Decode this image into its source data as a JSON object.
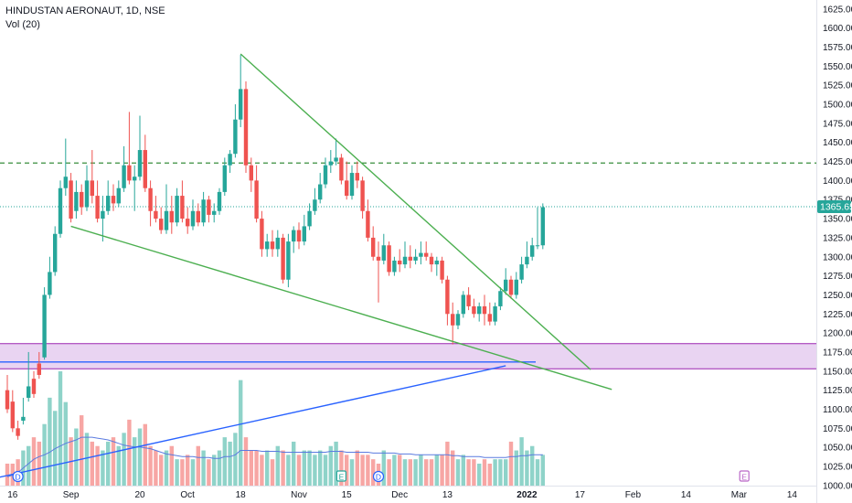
{
  "header": {
    "symbol_line": "HINDUSTAN AERONAUT, 1D, NSE",
    "indicator_line": "Vol (20)"
  },
  "price_tag": "1365.65",
  "colors": {
    "up": "#26a69a",
    "down": "#ef5350",
    "vol_up": "#8fd3c9",
    "vol_down": "#f7a6a4",
    "trendline_green": "#4caf50",
    "trendline_blue": "#2962ff",
    "zone_fill": "#e9d4f2",
    "zone_border": "#9c27b0",
    "resistance": "#388e3c",
    "vol_ma": "#5b7be0",
    "last_price": "#26a69a"
  },
  "chart_data": {
    "type": "candlestick",
    "price_axis": {
      "ticks": [
        "1625.00",
        "1600.00",
        "1575.00",
        "1550.00",
        "1525.00",
        "1500.00",
        "1475.00",
        "1450.00",
        "1425.00",
        "1400.00",
        "1375.00",
        "1350.00",
        "1325.00",
        "1300.00",
        "1275.00",
        "1250.00",
        "1225.00",
        "1200.00",
        "1175.00",
        "1150.00",
        "1125.00",
        "1100.00",
        "1075.00",
        "1050.00",
        "1025.00",
        "1000.00"
      ],
      "range": [
        995,
        1632
      ]
    },
    "time_axis": {
      "labels": [
        {
          "text": "16",
          "bar": 1
        },
        {
          "text": "Sep",
          "bar": 12
        },
        {
          "text": "20",
          "bar": 25
        },
        {
          "text": "Oct",
          "bar": 34
        },
        {
          "text": "18",
          "bar": 44
        },
        {
          "text": "Nov",
          "bar": 55
        },
        {
          "text": "15",
          "bar": 64
        },
        {
          "text": "Dec",
          "bar": 74
        },
        {
          "text": "13",
          "bar": 83
        },
        {
          "text": "2022",
          "bar": 98
        },
        {
          "text": "17",
          "bar": 108
        },
        {
          "text": "Feb",
          "bar": 118
        },
        {
          "text": "14",
          "bar": 128
        },
        {
          "text": "Mar",
          "bar": 138
        },
        {
          "text": "14",
          "bar": 148
        }
      ]
    },
    "candles": [
      [
        1125,
        1145,
        1100,
        1095
      ],
      [
        1110,
        1125,
        1075,
        1070
      ],
      [
        1075,
        1085,
        1065,
        1060
      ],
      [
        1085,
        1115,
        1090,
        1080
      ],
      [
        1115,
        1175,
        1130,
        1110
      ],
      [
        1140,
        1150,
        1120,
        1115
      ],
      [
        1160,
        1175,
        1145,
        1140
      ],
      [
        1168,
        1260,
        1250,
        1165
      ],
      [
        1250,
        1300,
        1280,
        1245
      ],
      [
        1280,
        1340,
        1330,
        1275
      ],
      [
        1330,
        1400,
        1390,
        1325
      ],
      [
        1390,
        1455,
        1405,
        1380
      ],
      [
        1400,
        1410,
        1350,
        1345
      ],
      [
        1360,
        1400,
        1385,
        1350
      ],
      [
        1385,
        1395,
        1365,
        1355
      ],
      [
        1365,
        1420,
        1400,
        1360
      ],
      [
        1400,
        1440,
        1380,
        1370
      ],
      [
        1380,
        1400,
        1350,
        1345
      ],
      [
        1350,
        1380,
        1360,
        1320
      ],
      [
        1360,
        1400,
        1380,
        1355
      ],
      [
        1380,
        1395,
        1370,
        1360
      ],
      [
        1370,
        1400,
        1390,
        1365
      ],
      [
        1390,
        1445,
        1420,
        1385
      ],
      [
        1420,
        1490,
        1400,
        1395
      ],
      [
        1400,
        1420,
        1405,
        1360
      ],
      [
        1405,
        1485,
        1440,
        1400
      ],
      [
        1440,
        1460,
        1390,
        1385
      ],
      [
        1390,
        1400,
        1360,
        1340
      ],
      [
        1360,
        1380,
        1350,
        1345
      ],
      [
        1350,
        1365,
        1335,
        1330
      ],
      [
        1335,
        1395,
        1360,
        1330
      ],
      [
        1360,
        1380,
        1345,
        1330
      ],
      [
        1345,
        1390,
        1380,
        1340
      ],
      [
        1380,
        1400,
        1350,
        1345
      ],
      [
        1350,
        1365,
        1340,
        1330
      ],
      [
        1340,
        1375,
        1360,
        1335
      ],
      [
        1360,
        1370,
        1345,
        1340
      ],
      [
        1345,
        1385,
        1375,
        1340
      ],
      [
        1375,
        1380,
        1355,
        1345
      ],
      [
        1355,
        1370,
        1360,
        1345
      ],
      [
        1360,
        1390,
        1385,
        1355
      ],
      [
        1385,
        1430,
        1420,
        1380
      ],
      [
        1420,
        1440,
        1435,
        1410
      ],
      [
        1435,
        1500,
        1480,
        1430
      ],
      [
        1480,
        1565,
        1520,
        1470
      ],
      [
        1520,
        1530,
        1420,
        1410
      ],
      [
        1420,
        1430,
        1400,
        1385
      ],
      [
        1400,
        1420,
        1350,
        1345
      ],
      [
        1350,
        1360,
        1310,
        1300
      ],
      [
        1310,
        1330,
        1320,
        1300
      ],
      [
        1320,
        1335,
        1310,
        1300
      ],
      [
        1310,
        1335,
        1325,
        1300
      ],
      [
        1325,
        1330,
        1270,
        1265
      ],
      [
        1270,
        1330,
        1320,
        1260
      ],
      [
        1320,
        1340,
        1335,
        1305
      ],
      [
        1335,
        1345,
        1320,
        1310
      ],
      [
        1320,
        1355,
        1340,
        1315
      ],
      [
        1340,
        1370,
        1360,
        1335
      ],
      [
        1360,
        1390,
        1375,
        1355
      ],
      [
        1375,
        1410,
        1395,
        1370
      ],
      [
        1395,
        1430,
        1420,
        1390
      ],
      [
        1420,
        1440,
        1425,
        1410
      ],
      [
        1425,
        1455,
        1430,
        1420
      ],
      [
        1430,
        1435,
        1400,
        1395
      ],
      [
        1400,
        1425,
        1380,
        1375
      ],
      [
        1380,
        1420,
        1410,
        1375
      ],
      [
        1410,
        1425,
        1400,
        1390
      ],
      [
        1400,
        1405,
        1360,
        1350
      ],
      [
        1360,
        1375,
        1325,
        1320
      ],
      [
        1325,
        1340,
        1300,
        1295
      ],
      [
        1300,
        1320,
        1295,
        1240
      ],
      [
        1295,
        1330,
        1315,
        1290
      ],
      [
        1315,
        1320,
        1280,
        1275
      ],
      [
        1280,
        1300,
        1295,
        1275
      ],
      [
        1295,
        1310,
        1290,
        1280
      ],
      [
        1290,
        1320,
        1300,
        1285
      ],
      [
        1300,
        1315,
        1295,
        1285
      ],
      [
        1295,
        1310,
        1300,
        1290
      ],
      [
        1300,
        1320,
        1305,
        1290
      ],
      [
        1305,
        1320,
        1300,
        1295
      ],
      [
        1300,
        1305,
        1290,
        1280
      ],
      [
        1290,
        1300,
        1295,
        1275
      ],
      [
        1295,
        1300,
        1270,
        1265
      ],
      [
        1270,
        1275,
        1225,
        1210
      ],
      [
        1225,
        1240,
        1210,
        1185
      ],
      [
        1210,
        1230,
        1225,
        1205
      ],
      [
        1225,
        1255,
        1250,
        1220
      ],
      [
        1250,
        1260,
        1235,
        1230
      ],
      [
        1235,
        1245,
        1225,
        1220
      ],
      [
        1225,
        1240,
        1235,
        1215
      ],
      [
        1235,
        1250,
        1225,
        1210
      ],
      [
        1225,
        1240,
        1215,
        1210
      ],
      [
        1215,
        1240,
        1235,
        1210
      ],
      [
        1235,
        1260,
        1255,
        1230
      ],
      [
        1255,
        1285,
        1270,
        1250
      ],
      [
        1270,
        1275,
        1250,
        1245
      ],
      [
        1250,
        1280,
        1270,
        1245
      ],
      [
        1270,
        1300,
        1290,
        1265
      ],
      [
        1290,
        1320,
        1300,
        1285
      ],
      [
        1300,
        1325,
        1315,
        1295
      ],
      [
        1315,
        1365,
        1315,
        1310
      ],
      [
        1315,
        1370,
        1365,
        1310
      ]
    ],
    "volume": {
      "axis_range": [
        0,
        130
      ],
      "values": [
        25,
        25,
        30,
        40,
        45,
        55,
        50,
        70,
        100,
        85,
        130,
        95,
        55,
        65,
        80,
        60,
        50,
        45,
        40,
        50,
        55,
        45,
        60,
        75,
        55,
        65,
        70,
        45,
        40,
        35,
        40,
        45,
        30,
        30,
        35,
        30,
        45,
        40,
        30,
        35,
        40,
        55,
        50,
        60,
        120,
        55,
        40,
        40,
        35,
        40,
        30,
        45,
        40,
        35,
        50,
        35,
        40,
        40,
        35,
        40,
        35,
        45,
        50,
        40,
        35,
        30,
        40,
        35,
        35,
        30,
        25,
        40,
        30,
        35,
        35,
        30,
        30,
        30,
        35,
        30,
        30,
        35,
        35,
        50,
        40,
        30,
        35,
        30,
        30,
        25,
        30,
        25,
        30,
        30,
        30,
        50,
        40,
        55,
        40,
        45,
        30,
        35
      ],
      "ma_values": [
        10,
        12,
        15,
        20,
        25,
        30,
        33,
        35,
        38,
        42,
        45,
        48,
        50,
        52,
        55,
        55,
        55,
        54,
        53,
        52,
        50,
        48,
        46,
        45,
        44,
        44,
        43,
        42,
        40,
        38,
        36,
        35,
        34,
        33,
        33,
        33,
        32,
        32,
        32,
        31,
        31,
        33,
        33,
        35,
        40,
        40,
        40,
        40,
        39,
        39,
        39,
        39,
        38,
        38,
        38,
        38,
        38,
        38,
        38,
        38,
        38,
        39,
        39,
        39,
        38,
        38,
        38,
        38,
        38,
        37,
        37,
        37,
        37,
        37,
        36,
        36,
        36,
        35,
        35,
        35,
        35,
        35,
        35,
        35,
        34,
        34,
        33,
        33,
        33,
        33,
        32,
        32,
        32,
        32,
        32,
        33,
        33,
        34,
        34,
        35,
        35,
        35
      ]
    },
    "levels": {
      "resistance_dashed": 1423,
      "zone": [
        1153,
        1186
      ],
      "horizontal_blue": 1162,
      "last_price": 1365.65
    },
    "trendlines": [
      {
        "color": "green",
        "from": [
          44,
          1566
        ],
        "to": [
          110,
          1152
        ]
      },
      {
        "color": "green",
        "from": [
          12,
          1340
        ],
        "to": [
          114,
          1126
        ]
      },
      {
        "color": "blue",
        "from": [
          -2,
          1010
        ],
        "to": [
          94,
          1157
        ]
      }
    ],
    "events": [
      {
        "type": "dividend",
        "label": "D",
        "bar": 2
      },
      {
        "type": "earnings",
        "label": "E",
        "bar": 63
      },
      {
        "type": "dividend",
        "label": "D",
        "bar": 70
      },
      {
        "type": "earnings",
        "label": "E",
        "bar": 139
      }
    ]
  }
}
